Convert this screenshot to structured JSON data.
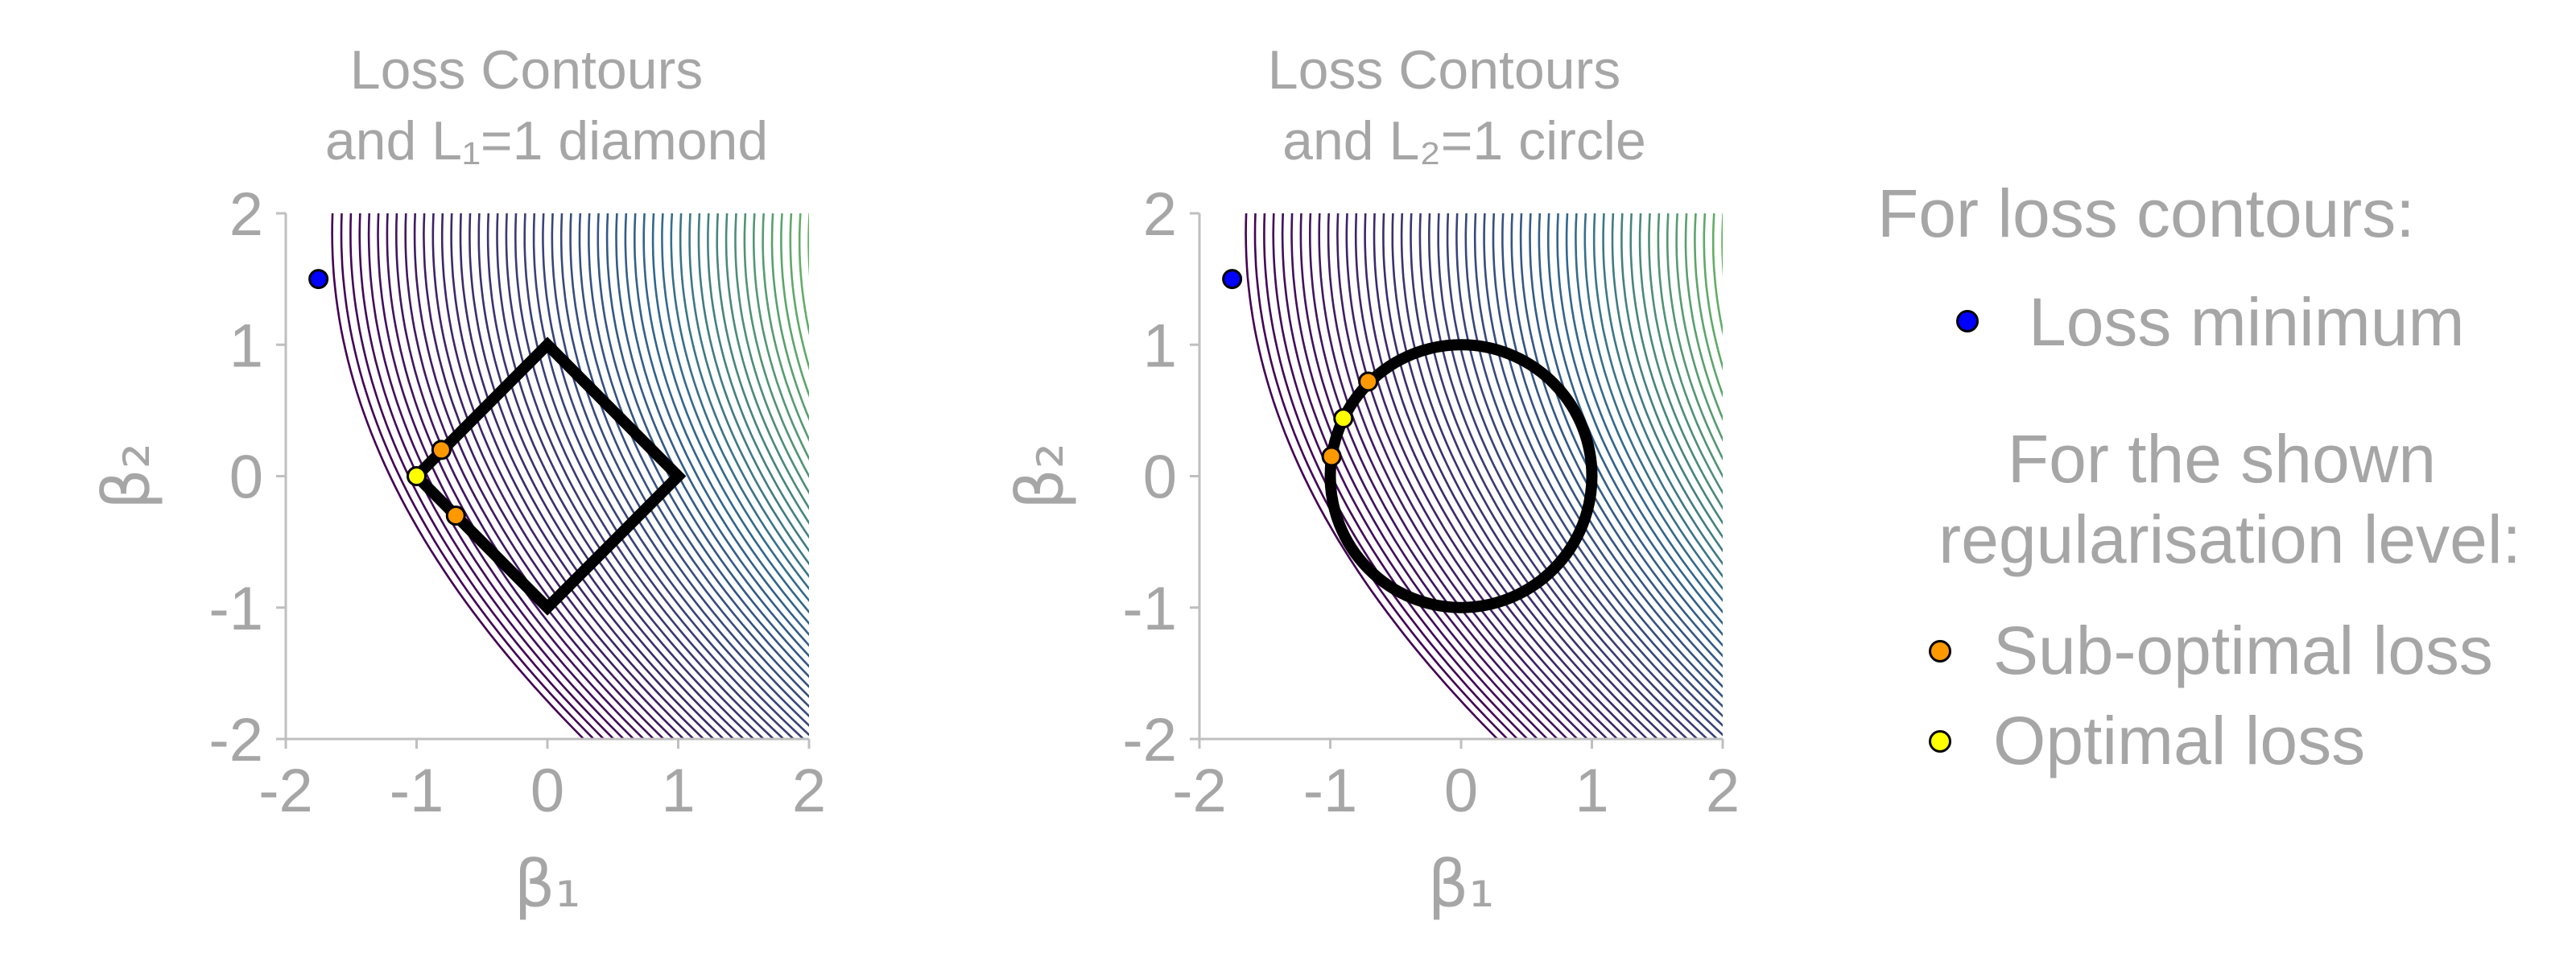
{
  "chart_data": [
    {
      "type": "contour",
      "title_line1": "Loss Contours",
      "title_line2": "and L₁=1 diamond",
      "xlabel": "β₁",
      "ylabel": "β₂",
      "xlim": [
        -2,
        2
      ],
      "ylim": [
        -2,
        2
      ],
      "xticks": [
        "-2",
        "-1",
        "0",
        "1",
        "2"
      ],
      "yticks": [
        "-2",
        "-1",
        "0",
        "1",
        "2"
      ],
      "constraint": "diamond",
      "constraint_radius": 1,
      "loss_minimum": {
        "x": -1.75,
        "y": 1.5
      },
      "suboptimal_points": [
        {
          "x": -0.81,
          "y": 0.2
        },
        {
          "x": -0.7,
          "y": -0.3
        }
      ],
      "optimal_point": {
        "x": -1.0,
        "y": 0.0
      }
    },
    {
      "type": "contour",
      "title_line1": "Loss Contours",
      "title_line2": "and L₂=1 circle",
      "xlabel": "β₁",
      "ylabel": "β₂",
      "xlim": [
        -2,
        2
      ],
      "ylim": [
        -2,
        2
      ],
      "xticks": [
        "-2",
        "-1",
        "0",
        "1",
        "2"
      ],
      "yticks": [
        "-2",
        "-1",
        "0",
        "1",
        "2"
      ],
      "constraint": "circle",
      "constraint_radius": 1,
      "loss_minimum": {
        "x": -1.75,
        "y": 1.5
      },
      "suboptimal_points": [
        {
          "x": -0.71,
          "y": 0.72
        },
        {
          "x": -0.99,
          "y": 0.15
        }
      ],
      "optimal_point": {
        "x": -0.9,
        "y": 0.44
      }
    }
  ],
  "legend": {
    "header_contours": "For loss contours:",
    "loss_minimum": "Loss minimum",
    "header_reg_line1": "For the shown",
    "header_reg_line2": "regularisation level:",
    "suboptimal": "Sub-optimal loss",
    "optimal": "Optimal loss"
  },
  "colors": {
    "text": "#a6a6a6",
    "axis": "#bfbfbf",
    "loss_minimum": "#0000ff",
    "suboptimal": "#ff9900",
    "optimal": "#ffff00",
    "constraint": "#000000",
    "contour_low": "#440154",
    "contour_mid": "#31688e",
    "contour_high": "#7ad151"
  }
}
